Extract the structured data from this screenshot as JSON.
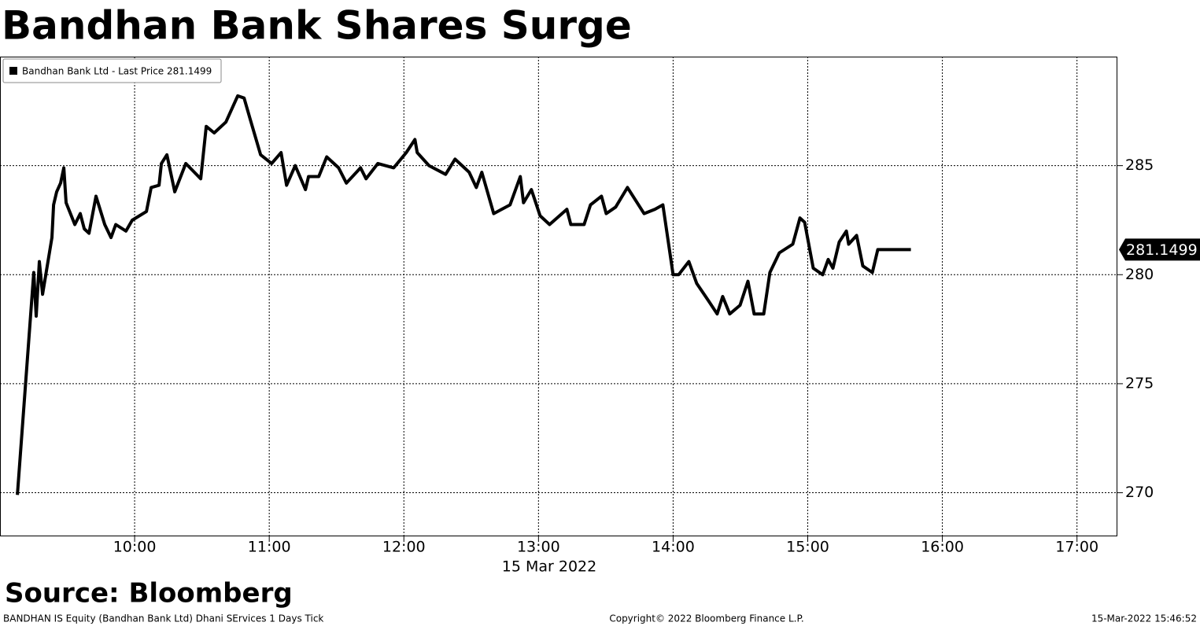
{
  "chart_data": {
    "type": "line",
    "title": "Bandhan Bank Shares Surge",
    "x_label": "15 Mar 2022",
    "source": "Source: Bloomberg",
    "footer_left": "BANDHAN IS Equity (Bandhan Bank Ltd) Dhani SErvices 1 Days  Tick",
    "footer_center": "Copyright© 2022 Bloomberg Finance L.P.",
    "footer_right": "15-Mar-2022 15:46:52",
    "last_value": 281.1499,
    "grid": true,
    "legend_position": "upper left",
    "xlim": [
      9,
      17.3
    ],
    "xticks": [
      {
        "value": 10,
        "label": "10:00"
      },
      {
        "value": 11,
        "label": "11:00"
      },
      {
        "value": 12,
        "label": "12:00"
      },
      {
        "value": 13,
        "label": "13:00"
      },
      {
        "value": 14,
        "label": "14:00"
      },
      {
        "value": 15,
        "label": "15:00"
      },
      {
        "value": 16,
        "label": "16:00"
      },
      {
        "value": 17,
        "label": "17:00"
      }
    ],
    "ylim": [
      268,
      290
    ],
    "yticks": [
      270,
      275,
      280,
      285
    ],
    "x": [
      9.129,
      9.251,
      9.269,
      9.292,
      9.316,
      9.386,
      9.398,
      9.421,
      9.45,
      9.474,
      9.491,
      9.556,
      9.596,
      9.626,
      9.661,
      9.713,
      9.778,
      9.825,
      9.86,
      9.936,
      9.982,
      10.088,
      10.123,
      10.181,
      10.199,
      10.24,
      10.298,
      10.38,
      10.491,
      10.532,
      10.591,
      10.678,
      10.766,
      10.813,
      10.86,
      10.936,
      11.018,
      11.088,
      11.129,
      11.193,
      11.269,
      11.292,
      11.368,
      11.427,
      11.515,
      11.573,
      11.678,
      11.719,
      11.807,
      11.924,
      12.018,
      12.082,
      12.099,
      12.187,
      12.31,
      12.38,
      12.485,
      12.538,
      12.579,
      12.667,
      12.789,
      12.865,
      12.889,
      12.947,
      13.012,
      13.082,
      13.211,
      13.24,
      13.339,
      13.386,
      13.468,
      13.503,
      13.573,
      13.661,
      13.784,
      13.865,
      13.924,
      14.0,
      14.041,
      14.117,
      14.175,
      14.263,
      14.327,
      14.368,
      14.421,
      14.497,
      14.556,
      14.602,
      14.673,
      14.719,
      14.789,
      14.889,
      14.942,
      14.977,
      15.041,
      15.111,
      15.152,
      15.187,
      15.234,
      15.287,
      15.304,
      15.363,
      15.409,
      15.48,
      15.52,
      15.766
    ],
    "series": [
      {
        "name": "Bandhan Bank Ltd - Last Price 281.1499",
        "color": "#000000",
        "values": [
          269.9,
          280.1,
          278.1,
          280.6,
          279.1,
          281.7,
          283.2,
          283.8,
          284.2,
          284.9,
          283.3,
          282.3,
          282.8,
          282.1,
          281.9,
          283.6,
          282.3,
          281.7,
          282.3,
          282.0,
          282.5,
          282.9,
          284.0,
          284.1,
          285.1,
          285.5,
          283.8,
          285.1,
          284.4,
          286.8,
          286.5,
          287.0,
          288.2,
          288.1,
          287.1,
          285.5,
          285.1,
          285.6,
          284.1,
          285.0,
          283.9,
          284.5,
          284.5,
          285.4,
          284.9,
          284.2,
          284.9,
          284.4,
          285.1,
          284.9,
          285.6,
          286.2,
          285.6,
          285.0,
          284.6,
          285.3,
          284.7,
          284.0,
          284.7,
          282.8,
          283.2,
          284.5,
          283.3,
          283.9,
          282.7,
          282.3,
          283.0,
          282.3,
          282.3,
          283.2,
          283.6,
          282.8,
          283.1,
          284.0,
          282.8,
          283.0,
          283.2,
          280.0,
          280.0,
          280.6,
          279.6,
          278.8,
          278.2,
          279.0,
          278.2,
          278.6,
          279.7,
          278.2,
          278.2,
          280.1,
          281.0,
          281.4,
          282.6,
          282.4,
          280.3,
          280.0,
          280.7,
          280.3,
          281.5,
          282.0,
          281.4,
          281.8,
          280.4,
          280.1,
          281.1499,
          281.1499
        ]
      }
    ]
  }
}
